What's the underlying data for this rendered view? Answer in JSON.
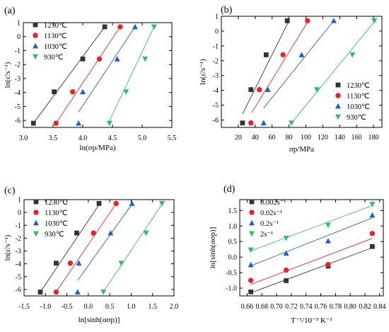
{
  "chart_data": [
    {
      "type": "scatter",
      "panel_label": "(a)",
      "ylabel": "ln(ε̇/s⁻¹)",
      "xlabel": "ln(σp/MPa)",
      "xlim": [
        3.0,
        5.5
      ],
      "ylim": [
        -6.5,
        1.0
      ],
      "xticks": [
        "3.0",
        "3.5",
        "4.0",
        "4.5",
        "5.0",
        "5.5"
      ],
      "yticks": [
        "1",
        "0",
        "-1",
        "-2",
        "-3",
        "-4",
        "-5",
        "-6"
      ],
      "legend_position": "top-left",
      "series": [
        {
          "name": "1230℃",
          "color": "#333333",
          "marker": "square",
          "x": [
            3.17,
            3.52,
            4.0,
            4.37
          ],
          "y": [
            -6.2,
            -3.95,
            -1.6,
            0.7
          ],
          "fit": [
            [
              3.17,
              -6.2
            ],
            [
              4.37,
              0.7
            ]
          ]
        },
        {
          "name": "1130℃",
          "color": "#e8212b",
          "marker": "circle",
          "x": [
            3.55,
            3.83,
            4.28,
            4.63
          ],
          "y": [
            -6.2,
            -3.95,
            -1.6,
            0.7
          ],
          "fit": [
            [
              3.55,
              -6.2
            ],
            [
              4.63,
              0.7
            ]
          ]
        },
        {
          "name": "1030℃",
          "color": "#1f5fc8",
          "marker": "triangle-up",
          "x": [
            3.93,
            4.0,
            4.58,
            4.88
          ],
          "y": [
            -6.2,
            -3.95,
            -1.6,
            0.7
          ],
          "fit": [
            [
              3.93,
              -5.4
            ],
            [
              4.88,
              0.7
            ]
          ]
        },
        {
          "name": "930℃",
          "color": "#2fbf5f",
          "marker": "triangle-down",
          "x": [
            4.45,
            4.73,
            5.05,
            5.2
          ],
          "y": [
            -6.2,
            -3.95,
            -1.6,
            0.7
          ],
          "fit": [
            [
              4.43,
              -6.2
            ],
            [
              5.2,
              0.7
            ]
          ]
        }
      ]
    },
    {
      "type": "scatter",
      "panel_label": "(b)",
      "ylabel": "ln(ε̇/s⁻¹)",
      "xlabel": "σp/MPa",
      "xlim": [
        0,
        190
      ],
      "ylim": [
        -6.5,
        1.0
      ],
      "xticks": [
        "20",
        "40",
        "60",
        "80",
        "100",
        "120",
        "140",
        "160",
        "180"
      ],
      "yticks": [
        "1",
        "0",
        "-1",
        "-2",
        "-3",
        "-4",
        "-5",
        "-6"
      ],
      "legend_position": "bottom-right",
      "series": [
        {
          "name": "1230℃",
          "color": "#333333",
          "marker": "square",
          "x": [
            25,
            35,
            53,
            78
          ],
          "y": [
            -6.2,
            -3.95,
            -1.6,
            0.7
          ],
          "fit": [
            [
              25,
              -5.6
            ],
            [
              80,
              0.7
            ]
          ]
        },
        {
          "name": "1130℃",
          "color": "#e8212b",
          "marker": "circle",
          "x": [
            35,
            45,
            73,
            102
          ],
          "y": [
            -6.2,
            -3.95,
            -1.6,
            0.7
          ],
          "fit": [
            [
              36,
              -5.5
            ],
            [
              103,
              0.7
            ]
          ]
        },
        {
          "name": "1030℃",
          "color": "#1f5fc8",
          "marker": "triangle-up",
          "x": [
            50,
            55,
            95,
            133
          ],
          "y": [
            -6.2,
            -3.95,
            -1.6,
            0.7
          ],
          "fit": [
            [
              50,
              -5.2
            ],
            [
              133,
              0.7
            ]
          ]
        },
        {
          "name": "930℃",
          "color": "#2fbf5f",
          "marker": "triangle-down",
          "x": [
            83,
            113,
            155,
            181
          ],
          "y": [
            -6.2,
            -3.95,
            -1.6,
            0.7
          ],
          "fit": [
            [
              83,
              -6.2
            ],
            [
              182,
              0.7
            ]
          ]
        }
      ]
    },
    {
      "type": "scatter",
      "panel_label": "(c)",
      "ylabel": "ln(ε̇/s⁻¹)",
      "xlabel": "ln[sinh(ασp)]",
      "xlim": [
        -1.5,
        2.0
      ],
      "ylim": [
        -6.5,
        1.0
      ],
      "xticks": [
        "-1.5",
        "-1.0",
        "-0.5",
        "0.0",
        "0.5",
        "1.0",
        "1.5",
        "2.0"
      ],
      "yticks": [
        "1",
        "0",
        "-1",
        "-2",
        "-3",
        "-4",
        "-5",
        "-6"
      ],
      "legend_position": "top-left",
      "series": [
        {
          "name": "1230℃",
          "color": "#333333",
          "marker": "square",
          "x": [
            -1.12,
            -0.75,
            -0.27,
            0.25
          ],
          "y": [
            -6.2,
            -3.95,
            -1.6,
            0.7
          ],
          "fit": [
            [
              -1.12,
              -6.2
            ],
            [
              0.27,
              0.7
            ]
          ]
        },
        {
          "name": "1130℃",
          "color": "#e8212b",
          "marker": "circle",
          "x": [
            -0.75,
            -0.42,
            0.12,
            0.65
          ],
          "y": [
            -6.2,
            -3.95,
            -1.6,
            0.7
          ],
          "fit": [
            [
              -0.75,
              -6.2
            ],
            [
              0.65,
              0.7
            ]
          ]
        },
        {
          "name": "1030℃",
          "color": "#1f5fc8",
          "marker": "triangle-up",
          "x": [
            -0.25,
            -0.22,
            0.52,
            1.02
          ],
          "y": [
            -6.2,
            -3.95,
            -1.6,
            0.7
          ],
          "fit": [
            [
              -0.25,
              -5.3
            ],
            [
              1.03,
              0.7
            ]
          ]
        },
        {
          "name": "930℃",
          "color": "#2fbf5f",
          "marker": "triangle-down",
          "x": [
            0.35,
            0.77,
            1.35,
            1.72
          ],
          "y": [
            -6.2,
            -3.95,
            -1.6,
            0.7
          ],
          "fit": [
            [
              0.35,
              -6.2
            ],
            [
              1.73,
              0.7
            ]
          ]
        }
      ]
    },
    {
      "type": "scatter",
      "panel_label": "(d)",
      "ylabel": "ln[sinh(ασp)]",
      "xlabel": "T⁻¹/10⁻³ K⁻¹",
      "xlim": [
        0.65,
        0.845
      ],
      "ylim": [
        -1.25,
        1.85
      ],
      "xticks": [
        "0.66",
        "0.68",
        "0.70",
        "0.72",
        "0.74",
        "0.76",
        "0.78",
        "0.80",
        "0.82",
        "0.84"
      ],
      "yticks": [
        "-1.0",
        "-0.5",
        "0.0",
        "0.5",
        "1.0",
        "1.5"
      ],
      "legend_position": "top-left",
      "series": [
        {
          "name": "0.002s⁻¹",
          "color": "#333333",
          "marker": "square",
          "x": [
            0.665,
            0.713,
            0.77,
            0.83
          ],
          "y": [
            -1.12,
            -0.76,
            -0.29,
            0.34
          ],
          "fit": [
            [
              0.665,
              -1.15
            ],
            [
              0.83,
              0.3
            ]
          ]
        },
        {
          "name": "0.02s⁻¹",
          "color": "#e8212b",
          "marker": "circle",
          "x": [
            0.665,
            0.713,
            0.77,
            0.83
          ],
          "y": [
            -0.75,
            -0.42,
            -0.24,
            0.76
          ],
          "fit": [
            [
              0.665,
              -0.88
            ],
            [
              0.83,
              0.6
            ]
          ]
        },
        {
          "name": "0.2s⁻¹",
          "color": "#1f5fc8",
          "marker": "triangle-up",
          "x": [
            0.665,
            0.713,
            0.77,
            0.83
          ],
          "y": [
            -0.25,
            0.12,
            0.52,
            1.35
          ],
          "fit": [
            [
              0.665,
              -0.28
            ],
            [
              0.83,
              1.26
            ]
          ]
        },
        {
          "name": "2s⁻¹",
          "color": "#2fbf5f",
          "marker": "triangle-down",
          "x": [
            0.665,
            0.713,
            0.77,
            0.83
          ],
          "y": [
            0.23,
            0.61,
            1.03,
            1.7
          ],
          "fit": [
            [
              0.665,
              0.2
            ],
            [
              0.83,
              1.66
            ]
          ]
        }
      ]
    }
  ]
}
